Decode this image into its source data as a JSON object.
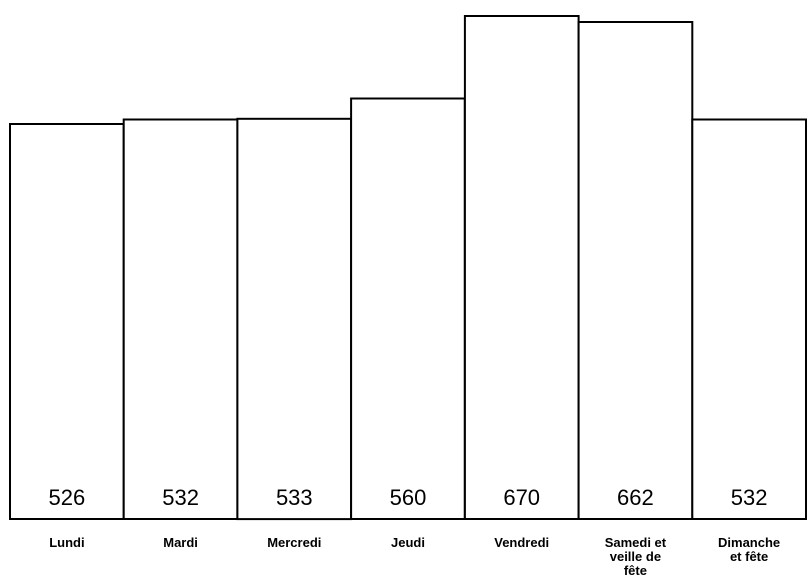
{
  "chart_data": {
    "type": "bar",
    "categories": [
      [
        "Lundi"
      ],
      [
        "Mardi"
      ],
      [
        "Mercredi"
      ],
      [
        "Jeudi"
      ],
      [
        "Vendredi"
      ],
      [
        "Samedi et",
        "veille de",
        "fête"
      ],
      [
        "Dimanche",
        "et fête"
      ]
    ],
    "values": [
      526,
      532,
      533,
      560,
      670,
      662,
      532
    ],
    "title": "",
    "xlabel": "",
    "ylabel": "",
    "data_labels": [
      "526",
      "532",
      "533",
      "560",
      "670",
      "662",
      "532"
    ],
    "ylim": [
      0,
      670
    ],
    "grid": false,
    "legend": "none",
    "colors": {
      "bar_fill": "#ffffff",
      "bar_stroke": "#000000",
      "text": "#000000"
    }
  }
}
